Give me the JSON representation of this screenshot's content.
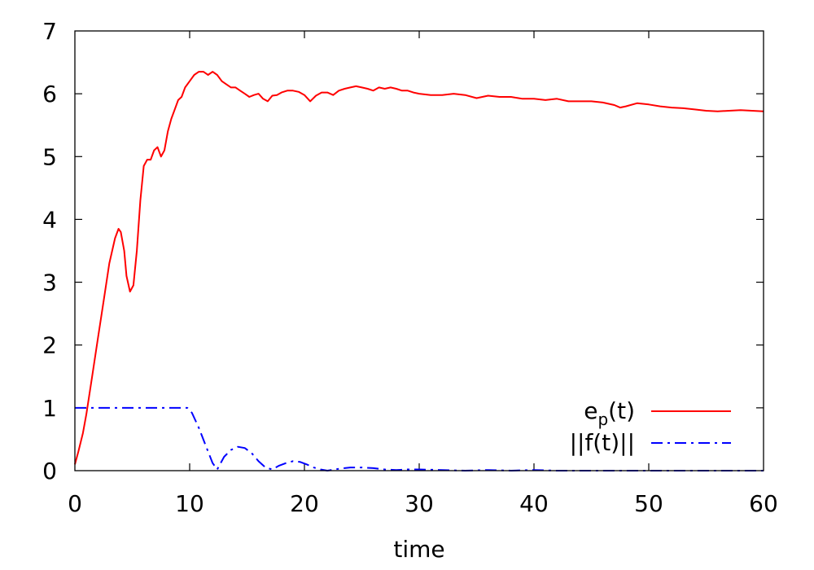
{
  "chart_data": {
    "type": "line",
    "title": "",
    "xlabel": "time",
    "ylabel": "",
    "xlim": [
      0,
      60
    ],
    "ylim": [
      0,
      7
    ],
    "xticks": [
      "0",
      "10",
      "20",
      "30",
      "40",
      "50",
      "60"
    ],
    "yticks": [
      "0",
      "1",
      "2",
      "3",
      "4",
      "5",
      "6",
      "7"
    ],
    "grid": false,
    "legend_position": "bottom-right",
    "series": [
      {
        "name": "e_p(t)",
        "legend_main": "e",
        "legend_sub": "p",
        "legend_rest": "(t)",
        "color": "#ff0000",
        "style": "solid",
        "x": [
          0,
          0.3,
          0.7,
          1.0,
          1.5,
          2.0,
          2.5,
          3.0,
          3.5,
          3.8,
          4.0,
          4.3,
          4.5,
          4.8,
          5.1,
          5.4,
          5.7,
          6.0,
          6.3,
          6.6,
          6.9,
          7.2,
          7.5,
          7.8,
          8.1,
          8.4,
          8.7,
          9.0,
          9.3,
          9.6,
          10.0,
          10.4,
          10.8,
          11.2,
          11.6,
          12.0,
          12.4,
          12.8,
          13.2,
          13.6,
          14.0,
          14.4,
          14.8,
          15.2,
          15.6,
          16.0,
          16.4,
          16.8,
          17.2,
          17.6,
          18.0,
          18.5,
          19.0,
          19.5,
          20.0,
          20.5,
          21.0,
          21.5,
          22.0,
          22.5,
          23.0,
          23.5,
          24.0,
          24.5,
          25.0,
          25.5,
          26.0,
          26.5,
          27.0,
          27.5,
          28.0,
          28.5,
          29.0,
          29.5,
          30.0,
          31.0,
          32.0,
          33.0,
          34.0,
          35.0,
          36.0,
          37.0,
          38.0,
          39.0,
          40.0,
          41.0,
          42.0,
          43.0,
          44.0,
          45.0,
          46.0,
          47.0,
          47.5,
          48.0,
          49.0,
          50.0,
          51.0,
          52.0,
          53.0,
          54.0,
          55.0,
          56.0,
          57.0,
          58.0,
          59.0,
          60.0
        ],
        "values": [
          0.1,
          0.3,
          0.6,
          0.9,
          1.5,
          2.1,
          2.7,
          3.3,
          3.7,
          3.85,
          3.8,
          3.5,
          3.1,
          2.85,
          2.95,
          3.5,
          4.3,
          4.85,
          4.95,
          4.95,
          5.1,
          5.15,
          5.0,
          5.1,
          5.4,
          5.6,
          5.75,
          5.9,
          5.95,
          6.1,
          6.2,
          6.3,
          6.35,
          6.35,
          6.3,
          6.35,
          6.3,
          6.2,
          6.15,
          6.1,
          6.1,
          6.05,
          6.0,
          5.95,
          5.98,
          6.0,
          5.92,
          5.88,
          5.97,
          5.98,
          6.02,
          6.05,
          6.05,
          6.03,
          5.98,
          5.88,
          5.97,
          6.02,
          6.02,
          5.98,
          6.05,
          6.08,
          6.1,
          6.12,
          6.1,
          6.08,
          6.05,
          6.1,
          6.08,
          6.1,
          6.08,
          6.05,
          6.05,
          6.02,
          6.0,
          5.98,
          5.98,
          6.0,
          5.98,
          5.93,
          5.97,
          5.95,
          5.95,
          5.92,
          5.92,
          5.9,
          5.92,
          5.88,
          5.88,
          5.88,
          5.86,
          5.82,
          5.78,
          5.8,
          5.85,
          5.83,
          5.8,
          5.78,
          5.77,
          5.75,
          5.73,
          5.72,
          5.73,
          5.74,
          5.73,
          5.72
        ]
      },
      {
        "name": "||f(t)||",
        "legend_main": "||f(t)||",
        "legend_sub": "",
        "legend_rest": "",
        "color": "#0000ff",
        "style": "dash-dot",
        "x": [
          0,
          2,
          4,
          6,
          8,
          9,
          9.8,
          10.2,
          10.8,
          11.4,
          12.0,
          12.4,
          13.0,
          13.6,
          14.2,
          14.8,
          15.4,
          16.0,
          16.6,
          17.2,
          17.8,
          18.4,
          19.0,
          19.6,
          20.2,
          20.8,
          21.4,
          22.0,
          23.0,
          24.0,
          25.0,
          26.0,
          27.0,
          28.0,
          29.0,
          30.0,
          32.0,
          34.0,
          36.0,
          38.0,
          40.0,
          42.0,
          45.0,
          50.0,
          55.0,
          60.0
        ],
        "values": [
          1.0,
          1.0,
          1.0,
          1.0,
          1.0,
          1.0,
          1.0,
          0.92,
          0.68,
          0.4,
          0.12,
          0.02,
          0.22,
          0.33,
          0.38,
          0.36,
          0.28,
          0.15,
          0.05,
          0.02,
          0.08,
          0.12,
          0.15,
          0.14,
          0.1,
          0.05,
          0.02,
          0.0,
          0.03,
          0.05,
          0.05,
          0.04,
          0.02,
          0.01,
          0.02,
          0.02,
          0.01,
          0.0,
          0.01,
          0.0,
          0.01,
          0.0,
          0.0,
          0.0,
          0.0,
          0.0
        ]
      }
    ]
  }
}
